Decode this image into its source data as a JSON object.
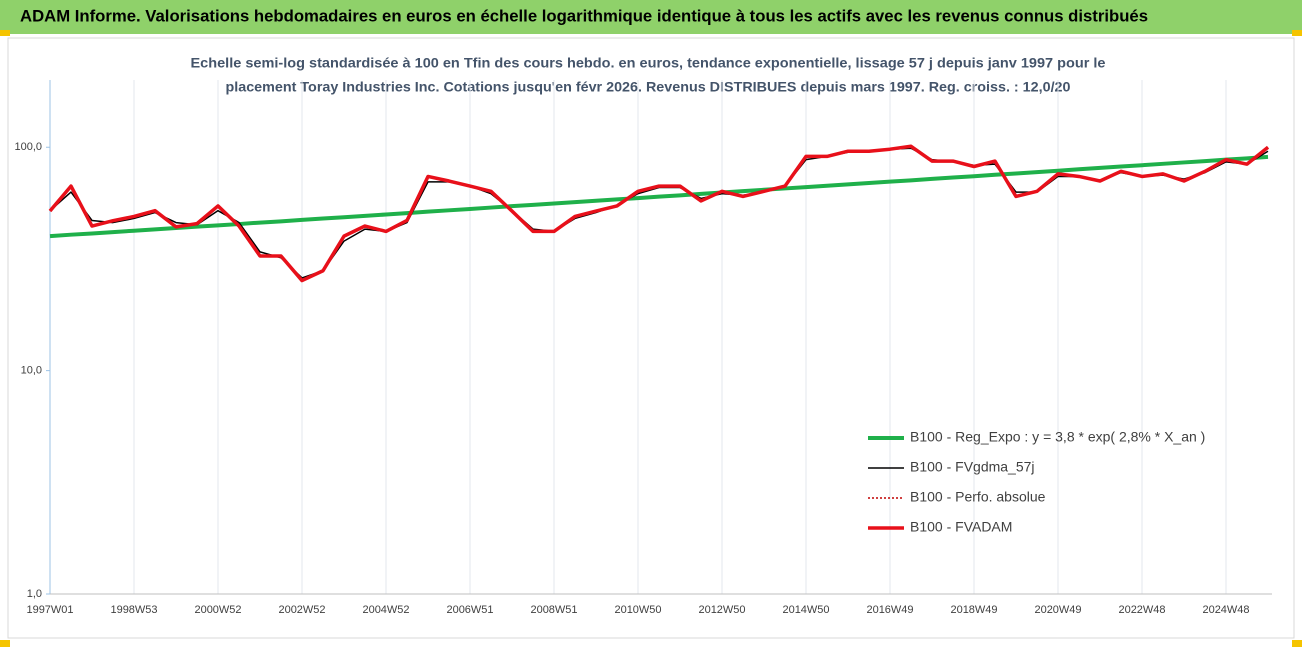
{
  "chart_data": {
    "type": "line",
    "title": "ADAM Informe. Valorisations hebdomadaires en euros en échelle logarithmique identique à tous les actifs avec les revenus connus distribués",
    "subtitle": [
      "Echelle semi-log standardisée à 100 en Tfin des cours hebdo. en euros, tendance exponentielle, lissage 57 j depuis janv 1997 pour le",
      "placement Toray Industries Inc. Cotations jusqu'en févr 2026. Revenus DISTRIBUES depuis mars 1997. Reg. croiss. : 12,0/20"
    ],
    "categories": [
      "1997W01",
      null,
      null,
      null,
      "1998W53",
      null,
      null,
      null,
      "2000W52",
      null,
      null,
      null,
      "2002W52",
      null,
      null,
      null,
      "2004W52",
      null,
      null,
      null,
      "2006W51",
      null,
      null,
      null,
      "2008W51",
      null,
      null,
      null,
      "2010W50",
      null,
      null,
      null,
      "2012W50",
      null,
      null,
      null,
      "2014W50",
      null,
      null,
      null,
      "2016W49",
      null,
      null,
      null,
      "2018W49",
      null,
      null,
      null,
      "2020W49",
      null,
      null,
      null,
      "2022W48",
      null,
      null,
      null,
      "2024W48",
      null,
      null
    ],
    "log_y": true,
    "ylim": [
      1,
      200
    ],
    "yticks": [
      {
        "value": 1,
        "label": "1,0"
      },
      {
        "value": 10,
        "label": "10,0"
      },
      {
        "value": 100,
        "label": "100,0"
      }
    ],
    "grid": true,
    "legend": "lower right",
    "series": [
      {
        "name": "B100 - Reg_Expo : y = 3,8 * exp( 2,8% *  X_an )",
        "color": "#1fb04a",
        "style": "solid",
        "width": 4,
        "values": [
          40.0,
          40.6,
          41.1,
          41.7,
          42.3,
          42.9,
          43.5,
          44.1,
          44.7,
          45.3,
          46.0,
          46.6,
          47.3,
          48.0,
          48.6,
          49.3,
          50.0,
          50.7,
          51.5,
          52.2,
          52.9,
          53.7,
          54.5,
          55.2,
          56.0,
          56.8,
          57.6,
          58.4,
          59.2,
          60.1,
          60.9,
          61.8,
          62.7,
          63.6,
          64.5,
          65.4,
          66.3,
          67.2,
          68.2,
          69.2,
          70.2,
          71.1,
          72.2,
          73.2,
          74.2,
          75.3,
          76.3,
          77.4,
          78.5,
          79.7,
          80.8,
          82.0,
          83.1,
          84.3,
          85.5,
          86.7,
          88.0,
          89.2,
          90.5
        ]
      },
      {
        "name": "B100 - FVgdma_57j",
        "color": "#000000",
        "style": "solid",
        "width": 1.5,
        "values": [
          52,
          63,
          47,
          46,
          48,
          51,
          46,
          45,
          52,
          46,
          34,
          32,
          26,
          28,
          38,
          43,
          42,
          46,
          70,
          70,
          67,
          62,
          52,
          43,
          42,
          48,
          51,
          55,
          62,
          66,
          66,
          59,
          62,
          61,
          63,
          67,
          88,
          91,
          95,
          96,
          98,
          99,
          88,
          86,
          83,
          84,
          63,
          63,
          74,
          74,
          71,
          77,
          74,
          75,
          72,
          77,
          86,
          84,
          96
        ]
      },
      {
        "name": "B100 - Perfo. absolue",
        "color": "#c00000",
        "style": "dotted",
        "width": 1.5,
        "values": [
          51.8,
          67,
          44.4,
          46.9,
          49,
          52,
          44,
          45.5,
          54.6,
          44.4,
          32.6,
          32.6,
          25.3,
          28,
          40,
          44.4,
          42,
          47,
          74,
          70.6,
          67,
          63.5,
          51.8,
          42,
          42,
          49,
          51.8,
          54.6,
          63.5,
          67,
          67,
          57.5,
          63.5,
          60.2,
          63.5,
          67,
          91,
          91,
          96,
          96,
          98,
          101,
          86.7,
          86.7,
          82,
          86.7,
          60.2,
          63.5,
          76,
          74,
          70.6,
          78,
          74,
          76,
          70.6,
          78,
          88,
          84,
          100
        ]
      },
      {
        "name": "B100 - FVADAM",
        "color": "#e8101a",
        "style": "solid",
        "width": 3.5,
        "values": [
          51.8,
          67,
          44.4,
          46.9,
          49,
          52,
          44,
          45.5,
          54.6,
          44.4,
          32.6,
          32.6,
          25.3,
          28,
          40,
          44.4,
          42,
          47,
          74,
          70.6,
          67,
          63.5,
          51.8,
          42,
          42,
          49,
          51.8,
          54.6,
          63.5,
          67,
          67,
          57.5,
          63.5,
          60.2,
          63.5,
          67,
          91,
          91,
          96,
          96,
          98,
          101,
          86.7,
          86.7,
          82,
          86.7,
          60.2,
          63.5,
          76,
          74,
          70.6,
          78,
          74,
          76,
          70.6,
          78,
          88,
          84,
          100
        ]
      }
    ]
  }
}
